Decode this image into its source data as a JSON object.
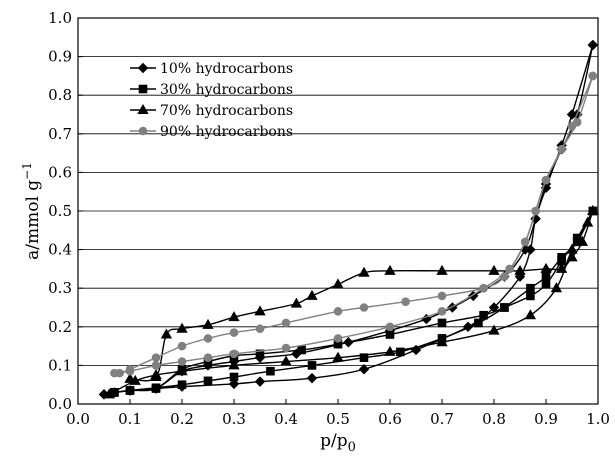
{
  "chart_data": {
    "type": "line",
    "xlabel": "p/p",
    "xlabel_sub": "0",
    "ylabel": "a/mmol g",
    "ylabel_sup": "−1",
    "xlim": [
      0.0,
      1.0
    ],
    "ylim": [
      0.0,
      1.0
    ],
    "xticks": [
      "0.0",
      "0.1",
      "0.2",
      "0.3",
      "0.4",
      "0.5",
      "0.6",
      "0.7",
      "0.8",
      "0.9",
      "1.0"
    ],
    "yticks": [
      "0.0",
      "0.1",
      "0.2",
      "0.3",
      "0.4",
      "0.5",
      "0.6",
      "0.7",
      "0.8",
      "0.9",
      "1.0"
    ],
    "grid": "horizontal",
    "legend_position": "top-left",
    "series": [
      {
        "name": "10% hydrocarbons",
        "marker": "diamond",
        "color": "#000000",
        "adsorption": [
          [
            0.05,
            0.025
          ],
          [
            0.07,
            0.03
          ],
          [
            0.1,
            0.035
          ],
          [
            0.15,
            0.04
          ],
          [
            0.2,
            0.045
          ],
          [
            0.3,
            0.052
          ],
          [
            0.35,
            0.058
          ],
          [
            0.45,
            0.067
          ],
          [
            0.55,
            0.09
          ],
          [
            0.65,
            0.14
          ],
          [
            0.75,
            0.2
          ],
          [
            0.8,
            0.25
          ],
          [
            0.85,
            0.33
          ],
          [
            0.87,
            0.4
          ],
          [
            0.88,
            0.48
          ],
          [
            0.9,
            0.56
          ],
          [
            0.93,
            0.67
          ],
          [
            0.95,
            0.75
          ],
          [
            0.99,
            0.93
          ]
        ],
        "desorption": [
          [
            0.99,
            0.93
          ],
          [
            0.96,
            0.75
          ],
          [
            0.93,
            0.66
          ],
          [
            0.9,
            0.57
          ],
          [
            0.88,
            0.48
          ],
          [
            0.86,
            0.4
          ],
          [
            0.82,
            0.33
          ],
          [
            0.76,
            0.28
          ],
          [
            0.72,
            0.25
          ],
          [
            0.67,
            0.22
          ],
          [
            0.6,
            0.19
          ],
          [
            0.52,
            0.16
          ],
          [
            0.42,
            0.13
          ],
          [
            0.35,
            0.12
          ],
          [
            0.3,
            0.11
          ],
          [
            0.25,
            0.1
          ],
          [
            0.2,
            0.085
          ],
          [
            0.15,
            0.04
          ],
          [
            0.1,
            0.035
          ],
          [
            0.05,
            0.025
          ]
        ]
      },
      {
        "name": "30% hydrocarbons",
        "marker": "square",
        "color": "#000000",
        "adsorption": [
          [
            0.07,
            0.03
          ],
          [
            0.1,
            0.035
          ],
          [
            0.15,
            0.042
          ],
          [
            0.2,
            0.05
          ],
          [
            0.25,
            0.06
          ],
          [
            0.3,
            0.07
          ],
          [
            0.37,
            0.085
          ],
          [
            0.45,
            0.1
          ],
          [
            0.55,
            0.12
          ],
          [
            0.62,
            0.135
          ],
          [
            0.7,
            0.17
          ],
          [
            0.77,
            0.21
          ],
          [
            0.82,
            0.25
          ],
          [
            0.87,
            0.3
          ],
          [
            0.9,
            0.33
          ],
          [
            0.93,
            0.38
          ],
          [
            0.96,
            0.42
          ],
          [
            0.99,
            0.5
          ]
        ],
        "desorption": [
          [
            0.99,
            0.5
          ],
          [
            0.96,
            0.43
          ],
          [
            0.93,
            0.37
          ],
          [
            0.9,
            0.31
          ],
          [
            0.87,
            0.28
          ],
          [
            0.82,
            0.25
          ],
          [
            0.78,
            0.23
          ],
          [
            0.7,
            0.21
          ],
          [
            0.6,
            0.18
          ],
          [
            0.5,
            0.155
          ],
          [
            0.43,
            0.14
          ],
          [
            0.35,
            0.13
          ],
          [
            0.3,
            0.125
          ],
          [
            0.25,
            0.11
          ],
          [
            0.2,
            0.09
          ],
          [
            0.15,
            0.04
          ],
          [
            0.1,
            0.035
          ],
          [
            0.07,
            0.03
          ]
        ]
      },
      {
        "name": "70% hydrocarbons",
        "marker": "triangle",
        "color": "#000000",
        "adsorption": [
          [
            0.06,
            0.025
          ],
          [
            0.11,
            0.06
          ],
          [
            0.15,
            0.075
          ],
          [
            0.2,
            0.085
          ],
          [
            0.3,
            0.1
          ],
          [
            0.4,
            0.11
          ],
          [
            0.5,
            0.12
          ],
          [
            0.6,
            0.135
          ],
          [
            0.7,
            0.16
          ],
          [
            0.8,
            0.19
          ],
          [
            0.87,
            0.23
          ],
          [
            0.92,
            0.3
          ],
          [
            0.95,
            0.4
          ],
          [
            0.98,
            0.47
          ],
          [
            0.99,
            0.5
          ]
        ],
        "desorption": [
          [
            0.99,
            0.5
          ],
          [
            0.97,
            0.42
          ],
          [
            0.95,
            0.38
          ],
          [
            0.93,
            0.35
          ],
          [
            0.9,
            0.35
          ],
          [
            0.85,
            0.345
          ],
          [
            0.8,
            0.345
          ],
          [
            0.7,
            0.345
          ],
          [
            0.6,
            0.345
          ],
          [
            0.55,
            0.34
          ],
          [
            0.5,
            0.31
          ],
          [
            0.45,
            0.28
          ],
          [
            0.42,
            0.26
          ],
          [
            0.35,
            0.24
          ],
          [
            0.3,
            0.225
          ],
          [
            0.25,
            0.205
          ],
          [
            0.2,
            0.195
          ],
          [
            0.17,
            0.18
          ],
          [
            0.15,
            0.07
          ],
          [
            0.1,
            0.065
          ]
        ]
      },
      {
        "name": "90% hydrocarbons",
        "marker": "circle",
        "color": "#808080",
        "adsorption": [
          [
            0.07,
            0.08
          ],
          [
            0.1,
            0.085
          ],
          [
            0.15,
            0.1
          ],
          [
            0.2,
            0.11
          ],
          [
            0.25,
            0.12
          ],
          [
            0.3,
            0.13
          ],
          [
            0.4,
            0.145
          ],
          [
            0.5,
            0.17
          ],
          [
            0.6,
            0.2
          ],
          [
            0.7,
            0.24
          ],
          [
            0.78,
            0.3
          ],
          [
            0.83,
            0.35
          ],
          [
            0.86,
            0.42
          ],
          [
            0.88,
            0.5
          ],
          [
            0.9,
            0.58
          ],
          [
            0.93,
            0.66
          ],
          [
            0.95,
            0.72
          ],
          [
            0.99,
            0.85
          ]
        ],
        "desorption": [
          [
            0.99,
            0.85
          ],
          [
            0.96,
            0.73
          ],
          [
            0.93,
            0.66
          ],
          [
            0.9,
            0.58
          ],
          [
            0.88,
            0.5
          ],
          [
            0.86,
            0.42
          ],
          [
            0.82,
            0.33
          ],
          [
            0.78,
            0.3
          ],
          [
            0.7,
            0.28
          ],
          [
            0.63,
            0.265
          ],
          [
            0.55,
            0.25
          ],
          [
            0.5,
            0.24
          ],
          [
            0.4,
            0.21
          ],
          [
            0.35,
            0.195
          ],
          [
            0.3,
            0.185
          ],
          [
            0.25,
            0.17
          ],
          [
            0.2,
            0.15
          ],
          [
            0.15,
            0.12
          ],
          [
            0.1,
            0.09
          ],
          [
            0.08,
            0.08
          ]
        ]
      }
    ]
  }
}
